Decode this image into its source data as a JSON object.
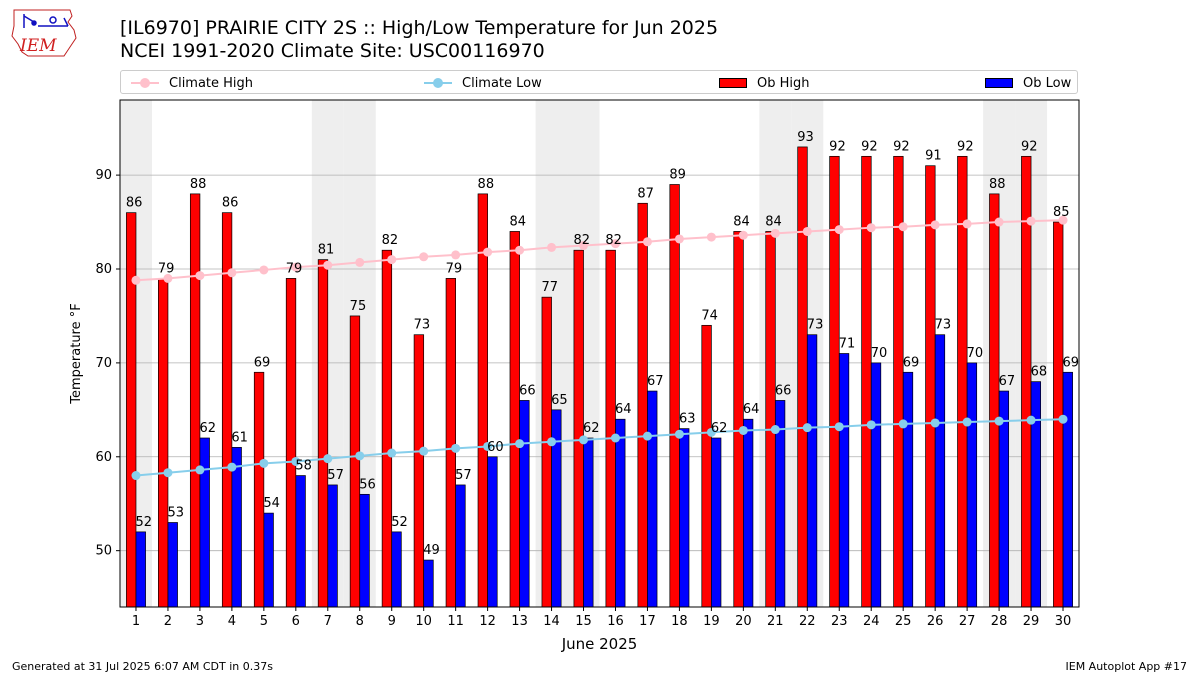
{
  "header": {
    "logo_text": "IEM",
    "title_line1": "[IL6970] PRAIRIE CITY 2S :: High/Low Temperature for Jun 2025",
    "title_line2": "NCEI 1991-2020 Climate Site: USC00116970"
  },
  "footer": {
    "generated": "Generated at 31 Jul 2025 6:07 AM CDT in 0.37s",
    "app": "IEM Autoplot App #17"
  },
  "chart_data": {
    "type": "bar",
    "xlabel": "June 2025",
    "ylabel": "Temperature °F",
    "ylim": [
      44,
      98
    ],
    "yticks": [
      50,
      60,
      70,
      80,
      90
    ],
    "grid": true,
    "legend_position": "top",
    "categories": [
      "1",
      "2",
      "3",
      "4",
      "5",
      "6",
      "7",
      "8",
      "9",
      "10",
      "11",
      "12",
      "13",
      "14",
      "15",
      "16",
      "17",
      "18",
      "19",
      "20",
      "21",
      "22",
      "23",
      "24",
      "25",
      "26",
      "27",
      "28",
      "29",
      "30"
    ],
    "weekend_days": [
      1,
      7,
      8,
      14,
      15,
      21,
      22,
      28,
      29
    ],
    "series": [
      {
        "name": "Ob High",
        "kind": "bar",
        "color": "#ff0000",
        "values": [
          86,
          79,
          88,
          86,
          69,
          79,
          81,
          75,
          82,
          73,
          79,
          88,
          84,
          77,
          82,
          82,
          87,
          89,
          74,
          84,
          84,
          93,
          92,
          92,
          92,
          91,
          92,
          88,
          92,
          85
        ]
      },
      {
        "name": "Ob Low",
        "kind": "bar",
        "color": "#0000ff",
        "values": [
          52,
          53,
          62,
          61,
          54,
          58,
          57,
          56,
          52,
          49,
          57,
          60,
          66,
          65,
          62,
          64,
          67,
          63,
          62,
          64,
          66,
          73,
          71,
          70,
          69,
          73,
          70,
          67,
          68,
          69
        ]
      },
      {
        "name": "Climate High",
        "kind": "line",
        "color": "#ffc0cb",
        "values": [
          78.8,
          79.0,
          79.3,
          79.6,
          79.9,
          80.2,
          80.4,
          80.7,
          81.0,
          81.3,
          81.5,
          81.8,
          82.0,
          82.3,
          82.5,
          82.7,
          82.9,
          83.2,
          83.4,
          83.6,
          83.8,
          84.0,
          84.2,
          84.4,
          84.5,
          84.7,
          84.8,
          85.0,
          85.1,
          85.2
        ]
      },
      {
        "name": "Climate Low",
        "kind": "line",
        "color": "#87ceeb",
        "values": [
          58.0,
          58.3,
          58.6,
          58.9,
          59.3,
          59.5,
          59.8,
          60.1,
          60.4,
          60.6,
          60.9,
          61.1,
          61.4,
          61.6,
          61.8,
          62.0,
          62.2,
          62.4,
          62.6,
          62.8,
          62.9,
          63.1,
          63.2,
          63.4,
          63.5,
          63.6,
          63.7,
          63.8,
          63.9,
          64.0
        ]
      }
    ]
  }
}
